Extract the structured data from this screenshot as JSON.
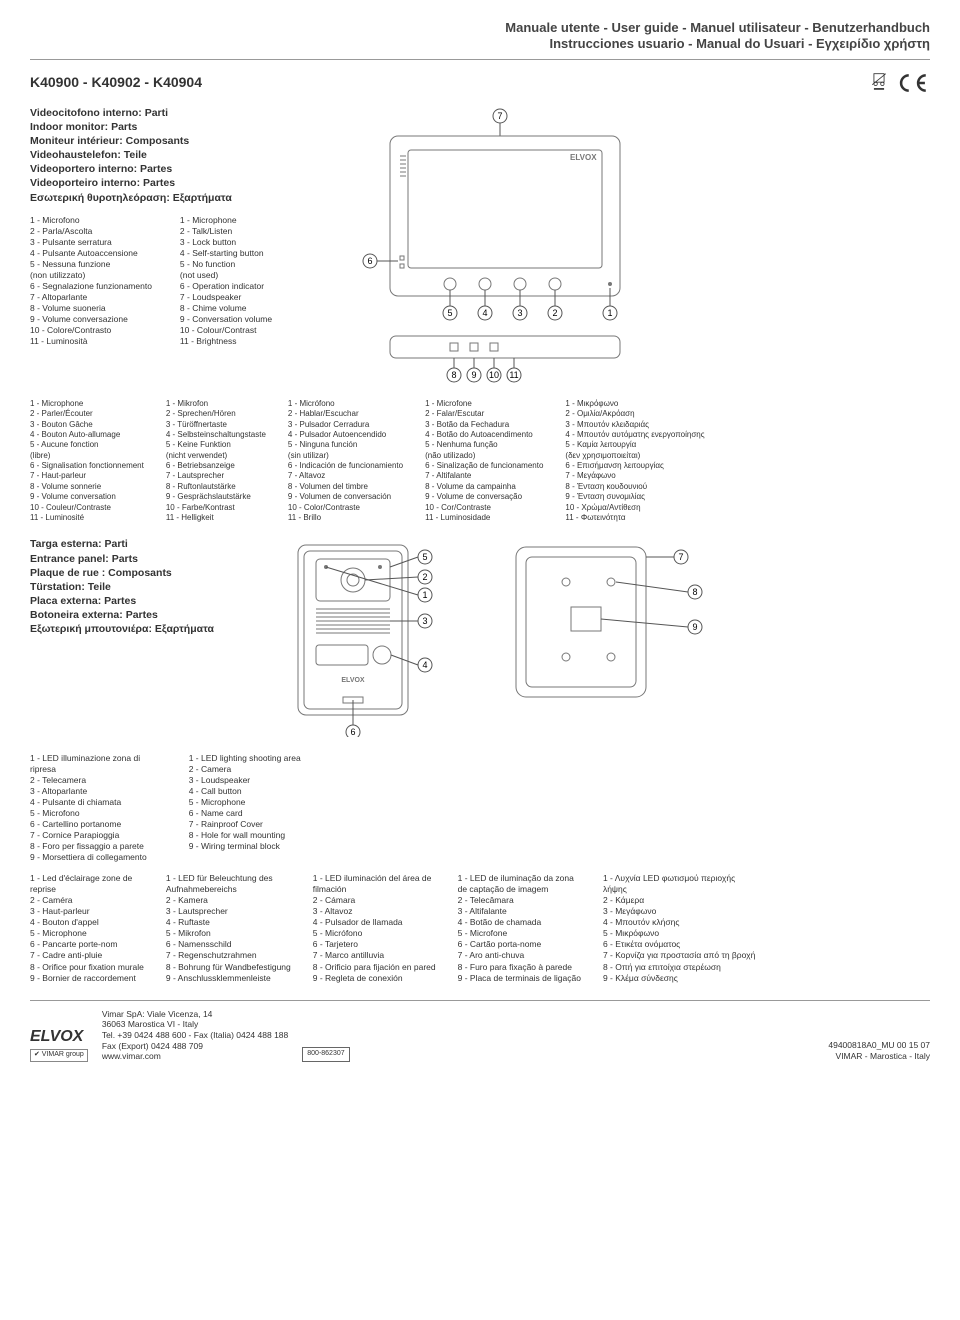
{
  "header": {
    "line1": "Manuale utente - User guide - Manuel utilisateur - Benutzerhandbuch",
    "line2": "Instrucciones usuario - Manual do Usuari - Εγχειρίδιο χρήστη"
  },
  "model_code": "K40900 - K40902 - K40904",
  "brand_on_device": "ELVOX",
  "monitor_titles": [
    "Videocitofono interno: Parti",
    "Indoor monitor:  Parts",
    "Moniteur intérieur: Composants",
    "Videohaustelefon: Teile",
    "Videoportero interno: Partes",
    "Videoporteiro interno: Partes",
    "Εσωτερική θυροτηλεόραση: Εξαρτήματα"
  ],
  "monitor_callouts_top": [
    "7",
    "6"
  ],
  "monitor_callouts_row": [
    "5",
    "4",
    "3",
    "2",
    "1"
  ],
  "monitor_callouts_bottom": [
    "8",
    "9",
    "10",
    "11"
  ],
  "monitor_lists_row1": [
    {
      "lang": "it",
      "items": [
        "1 -  Microfono",
        "2 -  Parla/Ascolta",
        "3 -  Pulsante serratura",
        "4 -  Pulsante Autoaccensione",
        "5 -  Nessuna funzione",
        "      (non utilizzato)",
        "6 -  Segnalazione funzionamento",
        "7 -  Altoparlante",
        "8 -  Volume suoneria",
        "9 -  Volume conversazione",
        "10 - Colore/Contrasto",
        "11 - Luminosità"
      ]
    },
    {
      "lang": "en",
      "items": [
        "1 -  Microphone",
        "2 -  Talk/Listen",
        "3 -  Lock button",
        "4 -  Self-starting button",
        "5 -  No function",
        "      (not used)",
        "6 -  Operation indicator",
        "7 -  Loudspeaker",
        "8 -  Chime volume",
        "9 -  Conversation volume",
        "10 - Colour/Contrast",
        "11 - Brightness"
      ]
    }
  ],
  "monitor_lists_row2": [
    {
      "lang": "fr",
      "items": [
        "1 -  Microphone",
        "2 -  Parler/Écouter",
        "3 -  Bouton Gâche",
        "4 -  Bouton Auto-allumage",
        "5 -  Aucune fonction",
        "      (libre)",
        "6 -  Signalisation fonctionnement",
        "7 -  Haut-parleur",
        "8 -  Volume sonnerie",
        "9 -  Volume conversation",
        "10 - Couleur/Contraste",
        "11 - Luminosité"
      ]
    },
    {
      "lang": "de",
      "items": [
        "1 -  Mikrofon",
        "2 -  Sprechen/Hören",
        "3 -  Türöffnertaste",
        "4 -  Selbsteinschaltungstaste",
        "5 -  Keine Funktion",
        "      (nicht verwendet)",
        "6 -  Betriebsanzeige",
        "7 -  Lautsprecher",
        "8 -  Ruftonlautstärke",
        "9 -  Gesprächslautstärke",
        "10 - Farbe/Kontrast",
        "11 - Helligkeit"
      ]
    },
    {
      "lang": "es",
      "items": [
        "1 -  Micrófono",
        "2 -  Hablar/Escuchar",
        "3 -  Pulsador Cerradura",
        "4 -  Pulsador Autoencendido",
        "5 -  Ninguna función",
        "      (sin utilizar)",
        "6 -  Indicación de funcionamiento",
        "7 -  Altavoz",
        "8 -  Volumen del timbre",
        "9 -  Volumen de conversación",
        "10 - Color/Contraste",
        "11 - Brillo"
      ]
    },
    {
      "lang": "pt",
      "items": [
        "1 -  Microfone",
        "2 -  Falar/Escutar",
        "3 -  Botão da Fechadura",
        "4 -  Botão do Autoacendimento",
        "5 -  Nenhuma função",
        "      (não utilizado)",
        "6 -  Sinalização de funcionamento",
        "7 -  Altifalante",
        "8 -  Volume da campainha",
        "9 -  Volume de conversação",
        "10 - Cor/Contraste",
        "11 - Luminosidade"
      ]
    },
    {
      "lang": "el",
      "items": [
        "1 -  Μικρόφωνο",
        "2 -  Ομιλία/Ακρόαση",
        "3 -  Μπουτόν κλειδαριάς",
        "4 -  Μπουτόν αυτόματης ενεργοποίησης",
        "5 -  Καμία λειτουργία",
        "      (δεν χρησιμοποιείται)",
        "6 -  Επισήμανση λειτουργίας",
        "7 -  Μεγάφωνο",
        "8 -  Ένταση κουδουνιού",
        "9 -  Ένταση συνομιλίας",
        "10 - Χρώμα/Αντίθεση",
        "11 - Φωτεινότητα"
      ]
    }
  ],
  "entrance_titles": [
    "Targa esterna: Parti",
    "Entrance panel: Parts",
    "Plaque de rue : Composants",
    "Türstation: Teile",
    "Placa externa: Partes",
    "Botoneira externa: Partes",
    "Εξωτερική μπουτονιέρα: Εξαρτήματα"
  ],
  "panel_callouts": [
    "5",
    "2",
    "1",
    "3",
    "4",
    "6"
  ],
  "bracket_callouts": [
    "7",
    "8",
    "9"
  ],
  "entrance_lists_row1": [
    {
      "lang": "it",
      "items": [
        "1 -  LED illuminazione zona di",
        "      ripresa",
        "2 -  Telecamera",
        "3 -  Altoparlante",
        "4 -  Pulsante di chiamata",
        "5 -  Microfono",
        "6 -  Cartellino portanome",
        "7 -  Cornice Parapioggia",
        "8 -  Foro per fissaggio a parete",
        "9 -  Morsettiera di collegamento"
      ]
    },
    {
      "lang": "en",
      "items": [
        "1 -  LED lighting shooting area",
        "2 -  Camera",
        "3 -  Loudspeaker",
        "4 -  Call button",
        "5 -  Microphone",
        "6 -  Name card",
        "7 -  Rainproof Cover",
        "8 -  Hole for wall mounting",
        "9 -  Wiring terminal block"
      ]
    }
  ],
  "entrance_lists_row2": [
    {
      "lang": "fr",
      "items": [
        "1 -  Led d'éclairage zone de",
        "      reprise",
        "2 -  Caméra",
        "3 -  Haut-parleur",
        "4 -  Bouton d'appel",
        "5 -  Microphone",
        "6 -  Pancarte porte-nom",
        "7 -  Cadre anti-pluie",
        "8 -  Orifice pour fixation murale",
        "9 -  Bornier de raccordement"
      ]
    },
    {
      "lang": "de",
      "items": [
        "1 -  LED für Beleuchtung des",
        "      Aufnahmebereichs",
        "2 -  Kamera",
        "3 -  Lautsprecher",
        "4 -  Ruftaste",
        "5 -  Mikrofon",
        "6 -  Namensschild",
        "7 -  Regenschutzrahmen",
        "8 -  Bohrung für Wandbefestigung",
        "9 -  Anschlussklemmenleiste"
      ]
    },
    {
      "lang": "es",
      "items": [
        "1 -  LED iluminación del área de",
        "      filmación",
        "2 -  Cámara",
        "3 -  Altavoz",
        "4 -  Pulsador de llamada",
        "5 -  Micrófono",
        "6 -  Tarjetero",
        "7 -  Marco antilluvia",
        "8 -  Orificio para fijación en pared",
        "9 -  Regleta de conexión"
      ]
    },
    {
      "lang": "pt",
      "items": [
        "1 -  LED de iluminação da zona",
        "      de captação de imagem",
        "2 -  Telecâmara",
        "3 -  Altifalante",
        "4 -  Botão de chamada",
        "5 -  Microfone",
        "6 -  Cartão porta-nome",
        "7 -  Aro anti-chuva",
        "8 -  Furo para fixação à parede",
        "9 -  Placa de terminais de ligação"
      ]
    },
    {
      "lang": "el",
      "items": [
        "1 -  Λυχνία LED φωτισμού περιοχής",
        "      λήψης",
        "2 -  Κάμερα",
        "3 -  Μεγάφωνο",
        "4 -  Μπουτόν κλήσης",
        "5 -  Μικρόφωνο",
        "6 -  Ετικέτα ονόματος",
        "7 -  Κορνίζα για προστασία από τη βροχή",
        "8 -  Οπή για επιτοίχια στερέωση",
        "9 -  Κλέμα σύνδεσης"
      ]
    }
  ],
  "footer": {
    "logo": "ELVOX",
    "group": "✔ VIMAR group",
    "addr1": "Vimar SpA: Viale Vicenza, 14",
    "addr2": "36063 Marostica VI - Italy",
    "tel": "Tel. +39 0424 488 600 - Fax (Italia) 0424 488 188",
    "fax": "Fax (Export) 0424 488 709",
    "web": "www.vimar.com",
    "phone_box": "800-862307",
    "right1": "49400818A0_MU   00   15 07",
    "right2": "VIMAR - Marostica - Italy"
  },
  "colors": {
    "text": "#333333",
    "line": "#999999",
    "diagram_stroke": "#777777",
    "bg": "#ffffff"
  }
}
